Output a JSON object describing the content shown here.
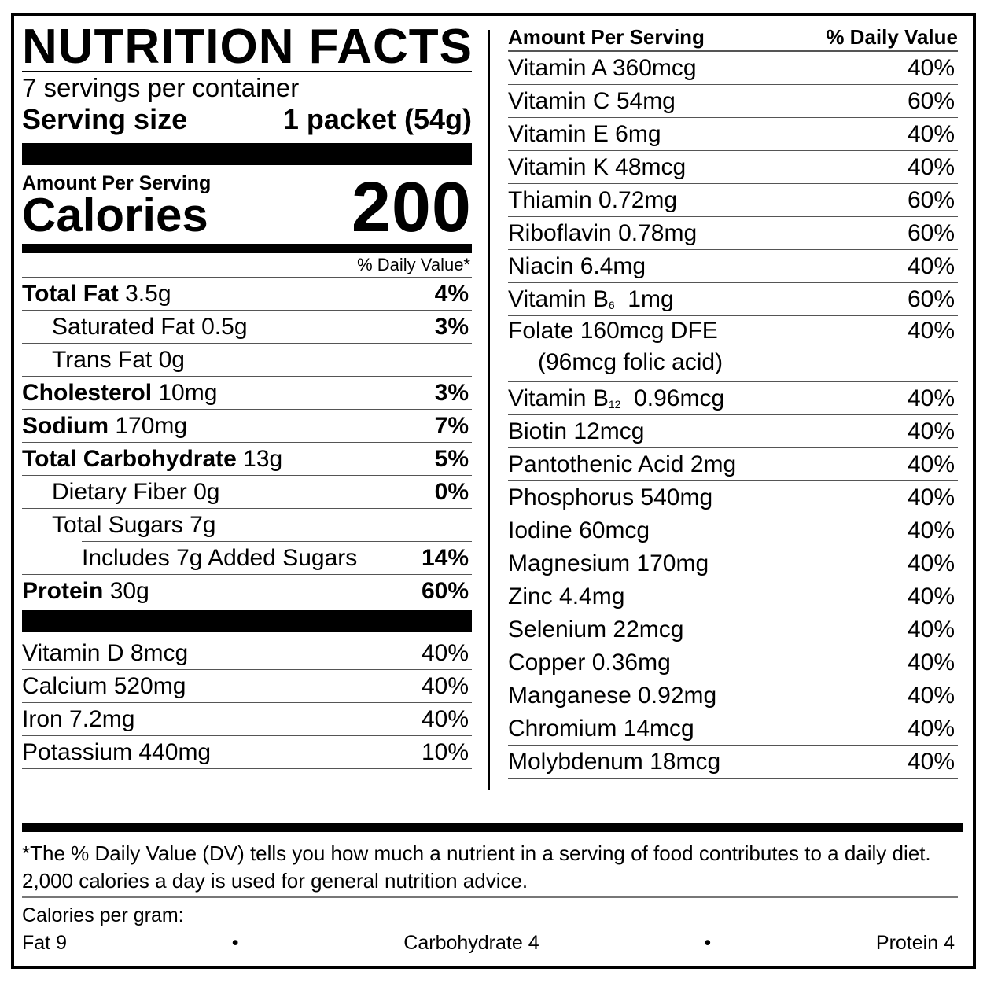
{
  "label": {
    "title": "NUTRITION FACTS",
    "servings_per_container": "7 servings per container",
    "serving_size_label": "Serving size",
    "serving_size_value": "1 packet (54g)",
    "amount_per_serving": "Amount Per Serving",
    "calories_label": "Calories",
    "calories_value": "200",
    "daily_value_header": "% Daily Value*"
  },
  "nutrients": [
    {
      "name": "Total Fat",
      "amount": "3.5g",
      "dv": "4%"
    },
    {
      "name": "Saturated Fat",
      "amount": "0.5g",
      "dv": "3%"
    },
    {
      "name": "Trans Fat",
      "amount": "0g",
      "dv": ""
    },
    {
      "name": "Cholesterol",
      "amount": "10mg",
      "dv": "3%"
    },
    {
      "name": "Sodium",
      "amount": "170mg",
      "dv": "7%"
    },
    {
      "name": "Total Carbohydrate",
      "amount": "13g",
      "dv": "5%"
    },
    {
      "name": "Dietary Fiber",
      "amount": "0g",
      "dv": "0%"
    },
    {
      "name": "Total Sugars",
      "amount": "7g",
      "dv": ""
    },
    {
      "name": "Includes 7g Added Sugars",
      "amount": "",
      "dv": "14%"
    },
    {
      "name": "Protein",
      "amount": "30g",
      "dv": "60%"
    }
  ],
  "left_vitamins": [
    {
      "text": "Vitamin D 8mcg",
      "dv": "40%"
    },
    {
      "text": "Calcium 520mg",
      "dv": "40%"
    },
    {
      "text": "Iron 7.2mg",
      "dv": "40%"
    },
    {
      "text": "Potassium 440mg",
      "dv": "10%"
    }
  ],
  "right_header": {
    "amount": "Amount Per Serving",
    "dv": "% Daily Value"
  },
  "right_vitamins": [
    {
      "text": "Vitamin A  360mcg",
      "dv": "40%"
    },
    {
      "text": "Vitamin C  54mg",
      "dv": "60%"
    },
    {
      "text": "Vitamin E  6mg",
      "dv": "40%"
    },
    {
      "text": "Vitamin K  48mcg",
      "dv": "40%"
    },
    {
      "text": "Thiamin  0.72mg",
      "dv": "60%"
    },
    {
      "text": "Riboflavin  0.78mg",
      "dv": "60%"
    },
    {
      "text": "Niacin  6.4mg",
      "dv": "40%"
    },
    {
      "text": "Vitamin B",
      "sub": "6",
      "rest": "  1mg",
      "dv": "60%"
    },
    {
      "text": "Folate  160mcg DFE",
      "second_line": "(96mcg folic acid)",
      "dv": "40%"
    },
    {
      "text": "Vitamin B",
      "sub": "12",
      "rest": "  0.96mcg",
      "dv": "40%"
    },
    {
      "text": "Biotin  12mcg",
      "dv": "40%"
    },
    {
      "text": "Pantothenic Acid  2mg",
      "dv": "40%"
    },
    {
      "text": "Phosphorus  540mg",
      "dv": "40%"
    },
    {
      "text": "Iodine  60mcg",
      "dv": "40%"
    },
    {
      "text": "Magnesium  170mg",
      "dv": "40%"
    },
    {
      "text": "Zinc  4.4mg",
      "dv": "40%"
    },
    {
      "text": "Selenium  22mcg",
      "dv": "40%"
    },
    {
      "text": "Copper  0.36mg",
      "dv": "40%"
    },
    {
      "text": "Manganese  0.92mg",
      "dv": "40%"
    },
    {
      "text": "Chromium  14mcg",
      "dv": "40%"
    },
    {
      "text": "Molybdenum 18mcg",
      "dv": "40%"
    }
  ],
  "footnote": {
    "line1": "*The % Daily Value (DV) tells you how much a nutrient in a serving of food contributes to a daily diet.",
    "line2": "2,000 calories a day is used for general nutrition advice.",
    "calories_per_gram": "Calories per gram:",
    "fat": "Fat 9",
    "bullet": "•",
    "carbohydrate": "Carbohydrate 4",
    "protein": "Protein 4"
  }
}
